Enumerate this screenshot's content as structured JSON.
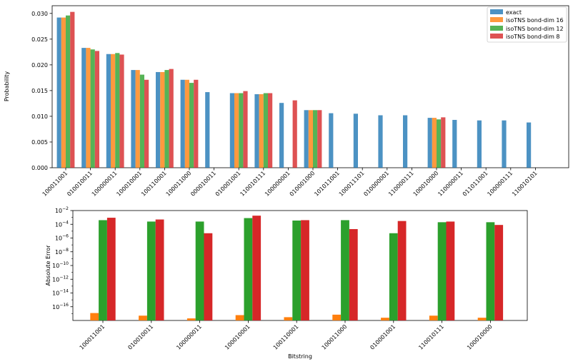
{
  "colors": {
    "exact": "#1f77b4",
    "bd16": "#ff7f0e",
    "bd12": "#2ca02c",
    "bd8": "#d62728"
  },
  "chart_data": [
    {
      "type": "bar",
      "xlabel": "",
      "ylabel": "Probability",
      "ylim": [
        0,
        0.0315
      ],
      "yticks": [
        0.0,
        0.005,
        0.01,
        0.015,
        0.02,
        0.025,
        0.03
      ],
      "ytick_labels": [
        "0.000",
        "0.005",
        "0.010",
        "0.015",
        "0.020",
        "0.025",
        "0.030"
      ],
      "legend_placement": "top-right",
      "categories": [
        "100011001",
        "010010011",
        "100000011",
        "100010001",
        "100110001",
        "100011000",
        "000010011",
        "010001001",
        "110010111",
        "100000001",
        "010001000",
        "101011001",
        "100011101",
        "010000001",
        "110000111",
        "100010000",
        "110000011",
        "011011001",
        "100000111",
        "110010101"
      ],
      "series": [
        {
          "name": "exact",
          "values": [
            0.0292,
            0.0233,
            0.0221,
            0.019,
            0.0186,
            0.0171,
            0.0147,
            0.0145,
            0.0143,
            0.0126,
            0.0112,
            0.0106,
            0.0105,
            0.0102,
            0.0102,
            0.0097,
            0.0093,
            0.0092,
            0.0092,
            0.0088
          ]
        },
        {
          "name": "isoTNS bond-dim 16",
          "values": [
            0.0292,
            0.0233,
            0.0221,
            0.019,
            0.0186,
            0.0171,
            0.0,
            0.0145,
            0.0143,
            0.0,
            0.0112,
            0.0,
            0.0,
            0.0,
            0.0,
            0.0097,
            0.0,
            0.0,
            0.0,
            0.0
          ]
        },
        {
          "name": "isoTNS bond-dim 12",
          "values": [
            0.0296,
            0.023,
            0.0223,
            0.0181,
            0.019,
            0.0165,
            0.0,
            0.0145,
            0.0145,
            0.0,
            0.0112,
            0.0,
            0.0,
            0.0,
            0.0,
            0.0094,
            0.0,
            0.0,
            0.0,
            0.0
          ]
        },
        {
          "name": "isoTNS bond-dim 8",
          "values": [
            0.0303,
            0.0227,
            0.022,
            0.0171,
            0.0192,
            0.0171,
            0.0,
            0.0149,
            0.0145,
            0.0131,
            0.0112,
            0.0,
            0.0,
            0.0,
            0.0,
            0.0098,
            0.0,
            0.0,
            0.0,
            0.0
          ]
        }
      ]
    },
    {
      "type": "bar",
      "xlabel": "Bitstring",
      "ylabel": "Absolute Error",
      "yscale": "log",
      "ylim": [
        1e-18,
        0.01
      ],
      "ytick_labels": [
        {
          "base": "10",
          "exp": "−2",
          "value": 0.01
        },
        {
          "base": "10",
          "exp": "−4",
          "value": 0.0001
        },
        {
          "base": "10",
          "exp": "−6",
          "value": 1e-06
        },
        {
          "base": "10",
          "exp": "−8",
          "value": 1e-08
        },
        {
          "base": "10",
          "exp": "−10",
          "value": 1e-10
        },
        {
          "base": "10",
          "exp": "−12",
          "value": 1e-12
        },
        {
          "base": "10",
          "exp": "−14",
          "value": 1e-14
        },
        {
          "base": "10",
          "exp": "−16",
          "value": 1e-16
        }
      ],
      "categories": [
        "100011001",
        "010010011",
        "100000011",
        "100010001",
        "100110001",
        "100011000",
        "010001001",
        "110010111",
        "100010000"
      ],
      "series": [
        {
          "name": "isoTNS bond-dim 16",
          "values": [
            1.2e-17,
            5e-18,
            2e-18,
            6e-18,
            3e-18,
            7e-18,
            2.5e-18,
            5e-18,
            2.5e-18
          ]
        },
        {
          "name": "isoTNS bond-dim 12",
          "values": [
            0.0004,
            0.00025,
            0.00025,
            0.0008,
            0.00035,
            0.0004,
            5e-06,
            0.0002,
            0.0002
          ]
        },
        {
          "name": "isoTNS bond-dim 8",
          "values": [
            0.0009,
            0.0005,
            5e-06,
            0.0018,
            0.0004,
            2e-05,
            0.0003,
            0.00025,
            8e-05
          ]
        }
      ]
    }
  ]
}
